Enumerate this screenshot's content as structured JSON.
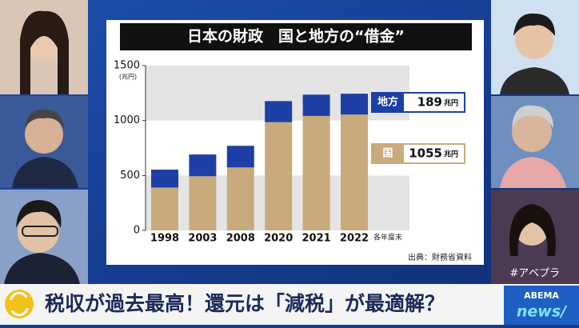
{
  "chart_data": {
    "type": "bar",
    "stacked": true,
    "title": "日本の財政　国と地方の“借金”",
    "y_unit": "(兆円)",
    "x_label": "各年度末",
    "source": "出典：財務省資料",
    "value_unit": "兆円",
    "categories": [
      "1998",
      "2003",
      "2008",
      "2020",
      "2021",
      "2022"
    ],
    "series": [
      {
        "name": "国",
        "color": "#c9aa7c",
        "values": [
          390,
          493,
          573,
          985,
          1042,
          1055
        ],
        "value_labels": [
          null,
          null,
          null,
          null,
          null,
          "1055"
        ]
      },
      {
        "name": "地方",
        "color": "#1d3fa6",
        "values": [
          163,
          198,
          197,
          192,
          194,
          189
        ],
        "value_labels": [
          null,
          null,
          null,
          null,
          null,
          "189"
        ]
      }
    ],
    "ylim": [
      0,
      1500
    ],
    "yticks": [
      0,
      500,
      1000,
      1500
    ],
    "grid": "bands"
  },
  "caption": "税収が過去最高！還元は「減税」が最適解？",
  "hashtag": "#アベプラ",
  "logo": {
    "top": "ABEMA",
    "bottom": "news/"
  }
}
